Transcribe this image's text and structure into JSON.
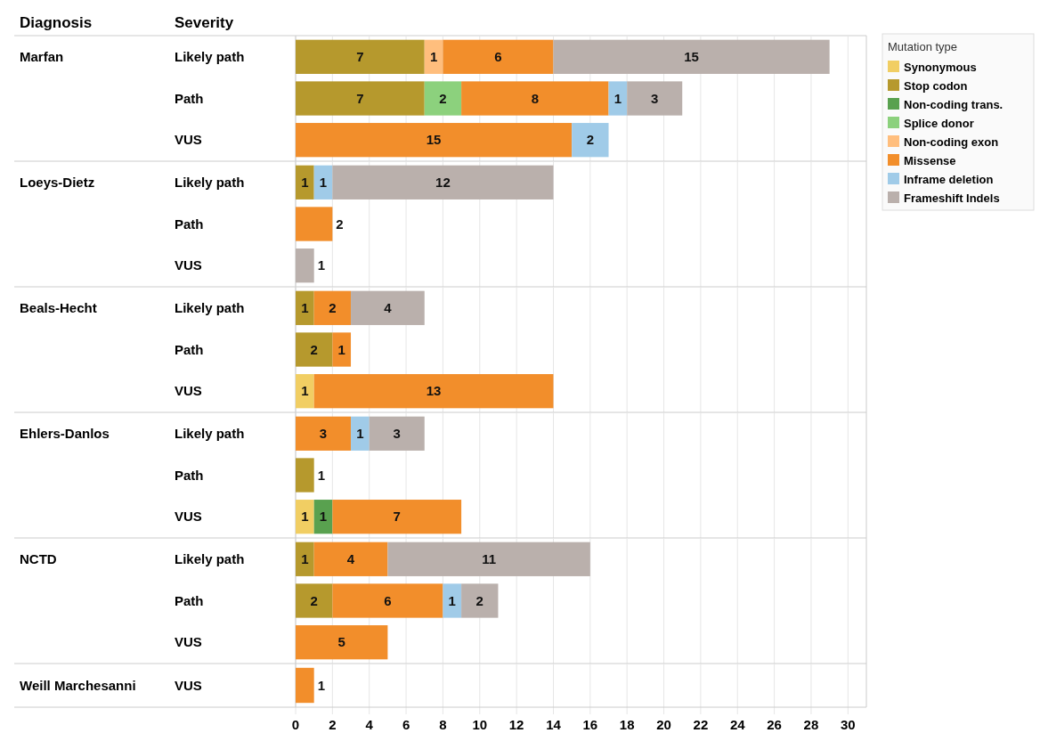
{
  "chart_data": [
    {
      "type": "bar",
      "orientation": "horizontal",
      "stacked": true,
      "ylabel": "Marfan",
      "annotations": [
        "Diagnosis",
        "Severity"
      ],
      "legend_title": "Mutation type",
      "legend": "right",
      "categories": [
        "Likely path",
        "Path",
        "VUS"
      ],
      "xlim": [
        0,
        31
      ],
      "xticks": [
        0,
        2,
        4,
        6,
        8,
        10,
        12,
        14,
        16,
        18,
        20,
        22,
        24,
        26,
        28,
        30
      ],
      "grid": "x",
      "data_labels": true,
      "tick_labels": "y",
      "series": [
        {
          "name": "Synonymous",
          "color": "#f1ce63",
          "values": [
            null,
            null,
            null
          ]
        },
        {
          "name": "Stop codon",
          "color": "#b6992d",
          "values": [
            7,
            7,
            null
          ]
        },
        {
          "name": "Non-coding trans.",
          "color": "#59a14f",
          "values": [
            null,
            null,
            null
          ]
        },
        {
          "name": "Splice donor",
          "color": "#8cd17d",
          "values": [
            null,
            2,
            null
          ]
        },
        {
          "name": "Non-coding exon",
          "color": "#ffbe7d",
          "values": [
            1,
            null,
            null
          ]
        },
        {
          "name": "Missense",
          "color": "#f28e2b",
          "values": [
            6,
            8,
            15
          ]
        },
        {
          "name": "Inframe deletion",
          "color": "#a0cbe8",
          "values": [
            null,
            1,
            2
          ]
        },
        {
          "name": "Frameshift Indels",
          "color": "#bab0ac",
          "values": [
            15,
            3,
            null
          ]
        }
      ]
    },
    {
      "type": "bar",
      "orientation": "horizontal",
      "stacked": true,
      "ylabel": "Loeys-Dietz",
      "categories": [
        "Likely path",
        "Path",
        "VUS"
      ],
      "xlim": [
        0,
        31
      ],
      "xticks": [
        0,
        2,
        4,
        6,
        8,
        10,
        12,
        14,
        16,
        18,
        20,
        22,
        24,
        26,
        28,
        30
      ],
      "grid": "x",
      "data_labels": true,
      "tick_labels": "y",
      "series": [
        {
          "color": "#b6992d",
          "values": [
            1,
            null,
            null
          ]
        },
        {
          "color": "#f28e2b",
          "values": [
            null,
            2,
            null
          ]
        },
        {
          "color": "#a0cbe8",
          "values": [
            1,
            null,
            null
          ]
        },
        {
          "color": "#bab0ac",
          "values": [
            12,
            null,
            1
          ]
        }
      ]
    },
    {
      "type": "bar",
      "orientation": "horizontal",
      "stacked": true,
      "ylabel": "Beals-Hecht",
      "categories": [
        "Likely path",
        "Path",
        "VUS"
      ],
      "xlim": [
        0,
        31
      ],
      "xticks": [
        0,
        2,
        4,
        6,
        8,
        10,
        12,
        14,
        16,
        18,
        20,
        22,
        24,
        26,
        28,
        30
      ],
      "grid": "x",
      "data_labels": true,
      "tick_labels": "y",
      "series": [
        {
          "color": "#f1ce63",
          "values": [
            null,
            null,
            1
          ]
        },
        {
          "color": "#b6992d",
          "values": [
            1,
            2,
            null
          ]
        },
        {
          "color": "#f28e2b",
          "values": [
            2,
            1,
            13
          ]
        },
        {
          "color": "#bab0ac",
          "values": [
            4,
            null,
            null
          ]
        }
      ]
    },
    {
      "type": "bar",
      "orientation": "horizontal",
      "stacked": true,
      "ylabel": "Ehlers-Danlos",
      "categories": [
        "Likely path",
        "Path",
        "VUS"
      ],
      "xlim": [
        0,
        31
      ],
      "xticks": [
        0,
        2,
        4,
        6,
        8,
        10,
        12,
        14,
        16,
        18,
        20,
        22,
        24,
        26,
        28,
        30
      ],
      "grid": "x",
      "data_labels": true,
      "tick_labels": "y",
      "series": [
        {
          "color": "#f1ce63",
          "values": [
            null,
            null,
            1
          ]
        },
        {
          "color": "#b6992d",
          "values": [
            null,
            1,
            null
          ]
        },
        {
          "color": "#59a14f",
          "values": [
            null,
            null,
            1
          ]
        },
        {
          "color": "#f28e2b",
          "values": [
            3,
            null,
            7
          ]
        },
        {
          "color": "#a0cbe8",
          "values": [
            1,
            null,
            null
          ]
        },
        {
          "color": "#bab0ac",
          "values": [
            3,
            null,
            null
          ]
        }
      ]
    },
    {
      "type": "bar",
      "orientation": "horizontal",
      "stacked": true,
      "ylabel": "NCTD",
      "categories": [
        "Likely path",
        "Path",
        "VUS"
      ],
      "xlim": [
        0,
        31
      ],
      "xticks": [
        0,
        2,
        4,
        6,
        8,
        10,
        12,
        14,
        16,
        18,
        20,
        22,
        24,
        26,
        28,
        30
      ],
      "grid": "x",
      "data_labels": true,
      "tick_labels": "y",
      "series": [
        {
          "color": "#b6992d",
          "values": [
            1,
            2,
            null
          ]
        },
        {
          "color": "#f28e2b",
          "values": [
            4,
            6,
            5
          ]
        },
        {
          "color": "#a0cbe8",
          "values": [
            null,
            1,
            null
          ]
        },
        {
          "color": "#bab0ac",
          "values": [
            11,
            2,
            null
          ]
        }
      ]
    },
    {
      "type": "bar",
      "orientation": "horizontal",
      "stacked": true,
      "ylabel": "Weill Marchesanni",
      "categories": [
        "VUS"
      ],
      "xlim": [
        0,
        31
      ],
      "xticks": [
        0,
        2,
        4,
        6,
        8,
        10,
        12,
        14,
        16,
        18,
        20,
        22,
        24,
        26,
        28,
        30
      ],
      "grid": "x",
      "data_labels": true,
      "series": [
        {
          "color": "#f28e2b",
          "values": [
            1
          ]
        }
      ]
    }
  ]
}
